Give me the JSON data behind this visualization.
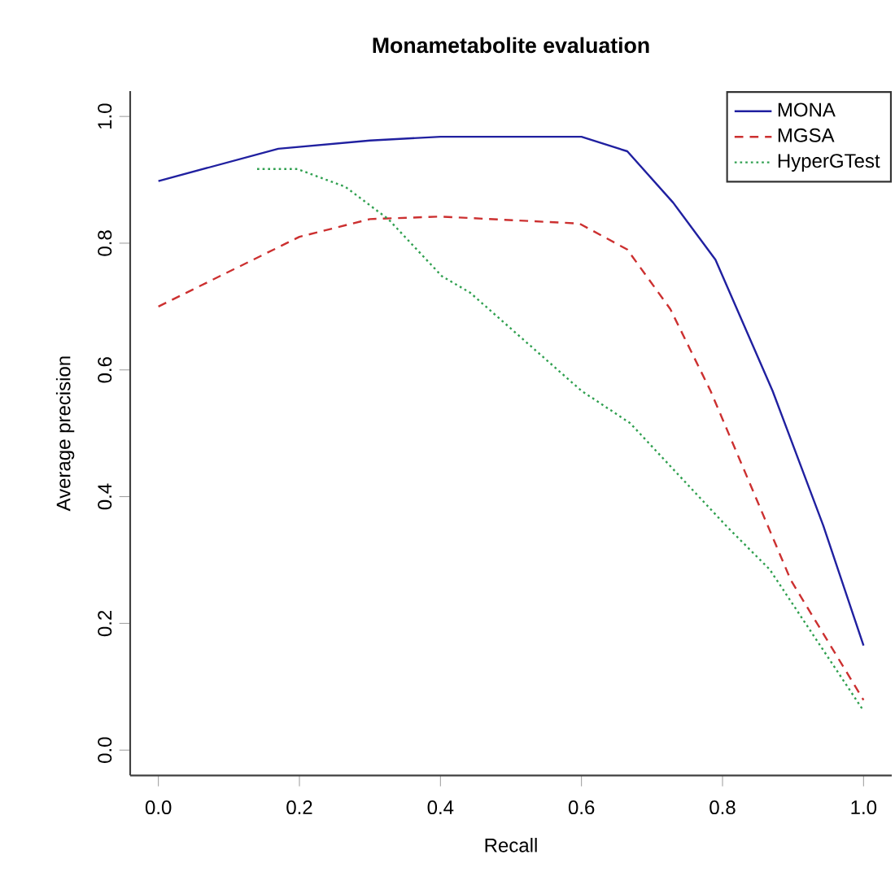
{
  "chart_data": {
    "type": "line",
    "title": "Monametabolite evaluation",
    "xlabel": "Recall",
    "ylabel": "Average precision",
    "xlim": [
      -0.04,
      1.04
    ],
    "ylim": [
      -0.04,
      1.04
    ],
    "xticks": [
      {
        "value": 0,
        "label": "0.0"
      },
      0.2,
      0.4,
      0.6,
      0.8,
      {
        "value": 1,
        "label": "1.0"
      }
    ],
    "yticks": [
      {
        "value": 0,
        "label": "0.0"
      },
      0.2,
      0.4,
      0.6,
      0.8,
      {
        "value": 1,
        "label": "1.0"
      }
    ],
    "legend": "top right",
    "marker": "none",
    "grid": false,
    "series": [
      {
        "name": "MONA",
        "color": "#2020a0",
        "line_style": "solid",
        "x": [
          0,
          0.17,
          0.3,
          0.4,
          0.6,
          0.665,
          0.73,
          0.79,
          0.871,
          0.943,
          1.0
        ],
        "values": [
          0.898,
          0.949,
          0.962,
          0.968,
          0.968,
          0.945,
          0.864,
          0.774,
          0.567,
          0.354,
          0.165
        ]
      },
      {
        "name": "MGSA",
        "color": "#cc3030",
        "line_style": "dashed",
        "x": [
          0,
          0.2,
          0.3,
          0.4,
          0.597,
          0.665,
          0.726,
          0.783,
          0.897,
          1.0
        ],
        "values": [
          0.7,
          0.81,
          0.838,
          0.842,
          0.831,
          0.79,
          0.696,
          0.567,
          0.268,
          0.079
        ]
      },
      {
        "name": "HyperGTest",
        "color": "#30a050",
        "line_style": "dotted",
        "x": [
          0.14,
          0.197,
          0.265,
          0.326,
          0.402,
          0.442,
          0.6,
          0.669,
          0.806,
          0.867,
          1.0
        ],
        "values": [
          0.917,
          0.917,
          0.889,
          0.838,
          0.748,
          0.722,
          0.567,
          0.516,
          0.353,
          0.285,
          0.062
        ]
      }
    ]
  }
}
